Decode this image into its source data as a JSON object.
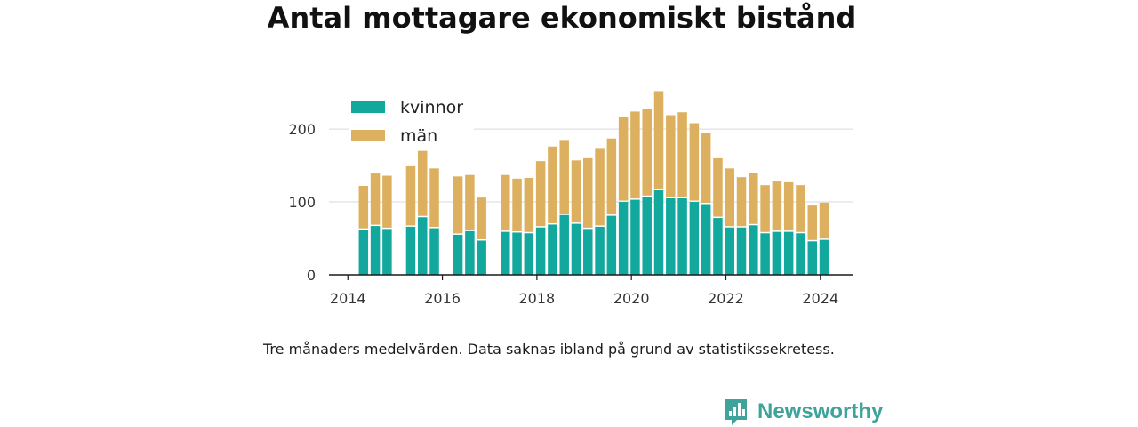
{
  "title": "Antal mottagare ekonomiskt bistånd",
  "note": "Tre månaders medelvärden. Data saknas ibland på grund av statistikssekretess.",
  "brand": {
    "name": "Newsworthy",
    "icon": "newsworthy-logo-icon",
    "color": "#3ea39b"
  },
  "chart_data": {
    "type": "bar",
    "stacked": true,
    "title": "Antal mottagare ekonomiskt bistånd",
    "xlabel": "",
    "ylabel": "",
    "ylim": [
      0,
      255
    ],
    "xlim": [
      2013.6,
      2024.7
    ],
    "grid": true,
    "legend_position": "top-left",
    "x_ticks": [
      2014,
      2016,
      2018,
      2020,
      2022,
      2024
    ],
    "y_ticks": [
      0,
      100,
      200
    ],
    "x": [
      2014.33,
      2014.58,
      2014.83,
      2015.33,
      2015.58,
      2015.83,
      2016.33,
      2016.58,
      2016.83,
      2017.33,
      2017.58,
      2017.83,
      2018.08,
      2018.33,
      2018.58,
      2018.83,
      2019.08,
      2019.33,
      2019.58,
      2019.83,
      2020.08,
      2020.33,
      2020.58,
      2020.83,
      2021.08,
      2021.33,
      2021.58,
      2021.83,
      2022.08,
      2022.33,
      2022.58,
      2022.83,
      2023.08,
      2023.33,
      2023.58,
      2023.83,
      2024.08
    ],
    "series": [
      {
        "name": "kvinnor",
        "color": "#13a89e",
        "values": [
          62,
          67,
          63,
          66,
          79,
          64,
          55,
          60,
          47,
          59,
          58,
          57,
          65,
          69,
          82,
          70,
          63,
          66,
          81,
          100,
          103,
          107,
          116,
          105,
          105,
          100,
          97,
          78,
          65,
          65,
          68,
          57,
          59,
          59,
          57,
          46,
          48
        ]
      },
      {
        "name": "män",
        "color": "#dcb05e",
        "values": [
          60,
          72,
          73,
          83,
          91,
          82,
          80,
          77,
          59,
          78,
          74,
          76,
          91,
          107,
          103,
          87,
          97,
          108,
          106,
          116,
          121,
          120,
          136,
          114,
          118,
          108,
          98,
          82,
          81,
          69,
          72,
          66,
          69,
          68,
          66,
          49,
          51
        ]
      }
    ]
  }
}
